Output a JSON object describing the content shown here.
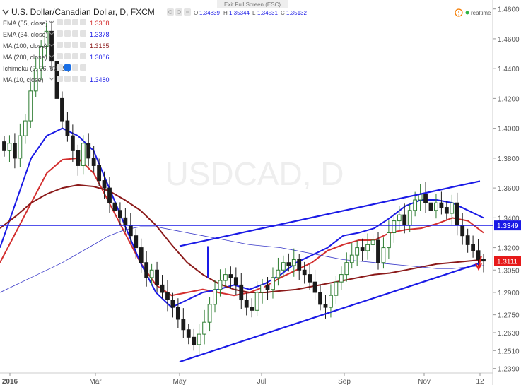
{
  "header": {
    "symbol_title": "U.S. Dollar/Canadian Dollar, D, FXCM",
    "ohlc": {
      "o_label": "O",
      "o": "1.34839",
      "h_label": "H",
      "h": "1.35344",
      "l_label": "L",
      "l": "1.34531",
      "c_label": "C",
      "c": "1.35132"
    },
    "exit_fullscreen": "Exit Full Screen (ESC)",
    "realtime": "realtime"
  },
  "indicators": [
    {
      "label": "EMA (55, close)",
      "value": "1.3308",
      "color": "#d32f2f"
    },
    {
      "label": "EMA (34, close)",
      "value": "1.3378",
      "color": "#1a1ae6"
    },
    {
      "label": "MA (100, close)",
      "value": "1.3165",
      "color": "#8b1a1a"
    },
    {
      "label": "MA (200, close)",
      "value": "1.3086",
      "color": "#1a1ae6"
    },
    {
      "label": "Ichimoku (9, 26, 52, 26)",
      "value": "",
      "color": "#888888"
    },
    {
      "label": "MA (10, close)",
      "value": "1.3480",
      "color": "#1a1ae6"
    }
  ],
  "watermark": "USDCAD, D",
  "chart_data": {
    "type": "candlestick",
    "instrument": "USDCAD",
    "x_tick_labels": [
      "2016",
      "Mar",
      "May",
      "Jul",
      "Sep",
      "Nov",
      "12"
    ],
    "y_tick_labels": [
      "1.4800",
      "1.4600",
      "1.4400",
      "1.4200",
      "1.4000",
      "1.3800",
      "1.3600",
      "1.3400",
      "1.3200",
      "1.3050",
      "1.2900",
      "1.2750",
      "1.2630",
      "1.2510",
      "1.2390"
    ],
    "y_range": [
      1.236,
      1.486
    ],
    "horizontal_level": {
      "value": 1.3349,
      "label": "1.3349",
      "color": "#1a1ae6"
    },
    "last_price": {
      "value": 1.3111,
      "label": "1.3111",
      "color": "#e61919"
    },
    "closes": [
      1.385,
      1.39,
      1.38,
      1.395,
      1.405,
      1.425,
      1.44,
      1.455,
      1.465,
      1.445,
      1.42,
      1.405,
      1.395,
      1.385,
      1.375,
      1.39,
      1.38,
      1.375,
      1.365,
      1.36,
      1.35,
      1.345,
      1.34,
      1.335,
      1.328,
      1.32,
      1.31,
      1.3,
      1.305,
      1.295,
      1.29,
      1.285,
      1.28,
      1.272,
      1.265,
      1.26,
      1.255,
      1.262,
      1.27,
      1.282,
      1.292,
      1.298,
      1.302,
      1.3,
      1.295,
      1.285,
      1.28,
      1.278,
      1.29,
      1.295,
      1.292,
      1.3,
      1.305,
      1.31,
      1.308,
      1.312,
      1.305,
      1.302,
      1.297,
      1.29,
      1.282,
      1.28,
      1.288,
      1.297,
      1.302,
      1.31,
      1.315,
      1.32,
      1.318,
      1.322,
      1.325,
      1.31,
      1.32,
      1.33,
      1.338,
      1.342,
      1.335,
      1.345,
      1.352,
      1.356,
      1.35,
      1.345,
      1.35,
      1.347,
      1.343,
      1.35,
      1.335,
      1.328,
      1.322,
      1.318,
      1.312,
      1.311
    ],
    "trendlines": [
      {
        "name": "upper channel",
        "points": [
          [
            "2016-05-01",
            1.321
          ],
          [
            "2016-12-12",
            1.3646
          ]
        ]
      },
      {
        "name": "lower channel",
        "points": [
          [
            "2016-05-01",
            1.2435
          ],
          [
            "2016-12-12",
            1.3096
          ]
        ]
      }
    ],
    "series": [
      {
        "name": "EMA (55, close)",
        "color": "#d32f2f",
        "points": [
          1.31,
          1.33,
          1.35,
          1.37,
          1.379,
          1.38,
          1.37,
          1.35,
          1.33,
          1.31,
          1.295,
          1.288,
          1.29,
          1.292,
          1.29,
          1.288,
          1.29,
          1.294,
          1.3,
          1.305,
          1.31,
          1.318,
          1.322,
          1.325,
          1.325,
          1.33,
          1.332,
          1.333,
          1.336,
          1.34,
          1.338,
          1.33
        ]
      },
      {
        "name": "EMA (34, close)",
        "color": "#1a1ae6",
        "points": [
          1.32,
          1.35,
          1.38,
          1.395,
          1.4,
          1.395,
          1.385,
          1.36,
          1.335,
          1.31,
          1.29,
          1.28,
          1.285,
          1.29,
          1.292,
          1.295,
          1.292,
          1.296,
          1.302,
          1.31,
          1.315,
          1.32,
          1.328,
          1.33,
          1.333,
          1.34,
          1.348,
          1.352,
          1.352,
          1.35,
          1.345,
          1.34
        ]
      },
      {
        "name": "MA (100, close)",
        "color": "#8b1a1a",
        "points": [
          1.333,
          1.341,
          1.35,
          1.356,
          1.36,
          1.362,
          1.361,
          1.358,
          1.352,
          1.345,
          1.335,
          1.322,
          1.31,
          1.302,
          1.296,
          1.292,
          1.29,
          1.29,
          1.291,
          1.292,
          1.294,
          1.296,
          1.298,
          1.3,
          1.302,
          1.303,
          1.305,
          1.307,
          1.309,
          1.31,
          1.311,
          1.312
        ]
      },
      {
        "name": "MA (200, close)",
        "color": "#3838c8",
        "points": [
          1.29,
          1.295,
          1.3,
          1.305,
          1.31,
          1.316,
          1.322,
          1.328,
          1.332,
          1.334,
          1.334,
          1.332,
          1.33,
          1.328,
          1.326,
          1.324,
          1.322,
          1.321,
          1.32,
          1.318,
          1.316,
          1.314,
          1.312,
          1.311,
          1.31,
          1.309,
          1.308,
          1.307,
          1.306,
          1.306,
          1.307,
          1.308
        ]
      }
    ]
  }
}
